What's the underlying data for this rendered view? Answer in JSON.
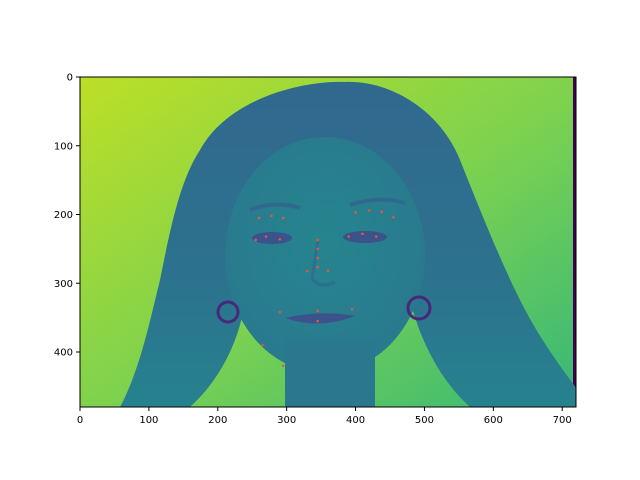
{
  "chart_data": {
    "type": "image",
    "colormap": "viridis",
    "xlim": [
      0,
      720
    ],
    "ylim": [
      480,
      0
    ],
    "y_inverted": true,
    "x_ticks": [
      0,
      100,
      200,
      300,
      400,
      500,
      600,
      700
    ],
    "y_ticks": [
      0,
      100,
      200,
      300,
      400
    ],
    "x_tick_labels": [
      "0",
      "100",
      "200",
      "300",
      "400",
      "500",
      "600",
      "700"
    ],
    "y_tick_labels": [
      "0",
      "100",
      "200",
      "300",
      "400"
    ],
    "title": "",
    "xlabel": "",
    "ylabel": "",
    "landmarks": [
      {
        "x": 260,
        "y": 205
      },
      {
        "x": 278,
        "y": 202
      },
      {
        "x": 295,
        "y": 205
      },
      {
        "x": 400,
        "y": 197
      },
      {
        "x": 420,
        "y": 194
      },
      {
        "x": 438,
        "y": 196
      },
      {
        "x": 455,
        "y": 204
      },
      {
        "x": 345,
        "y": 237
      },
      {
        "x": 345,
        "y": 250
      },
      {
        "x": 345,
        "y": 263
      },
      {
        "x": 345,
        "y": 276
      },
      {
        "x": 330,
        "y": 282
      },
      {
        "x": 360,
        "y": 282
      },
      {
        "x": 255,
        "y": 237
      },
      {
        "x": 270,
        "y": 232
      },
      {
        "x": 290,
        "y": 236
      },
      {
        "x": 390,
        "y": 232
      },
      {
        "x": 410,
        "y": 228
      },
      {
        "x": 430,
        "y": 232
      },
      {
        "x": 290,
        "y": 342
      },
      {
        "x": 345,
        "y": 340
      },
      {
        "x": 395,
        "y": 338
      },
      {
        "x": 345,
        "y": 355
      },
      {
        "x": 265,
        "y": 390
      },
      {
        "x": 295,
        "y": 420
      }
    ],
    "colors": {
      "background_light": "#bddf26",
      "background_mid": "#5ec962",
      "background_right": "#35b779",
      "hair": "#31688e",
      "hair_dark": "#3b528b",
      "face": "#21918c",
      "shadow": "#440154",
      "landmark": "#e05a3a"
    }
  }
}
